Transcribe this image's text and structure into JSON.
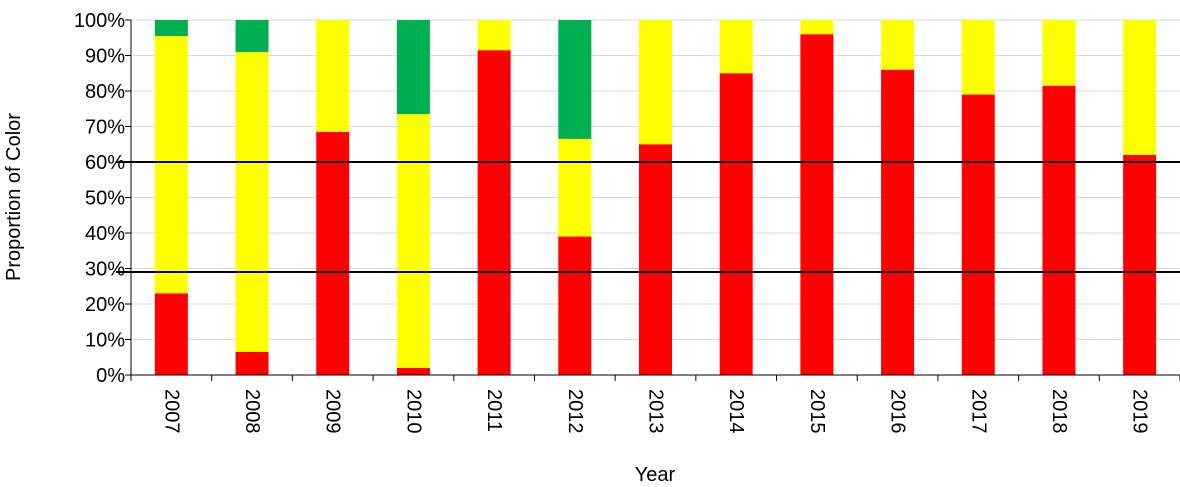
{
  "chart_data": {
    "type": "bar",
    "stacked": true,
    "title": "",
    "xlabel": "Year",
    "ylabel": "Proportion of Color",
    "ylim": [
      0,
      100
    ],
    "yticks": [
      "0%",
      "10%",
      "20%",
      "30%",
      "40%",
      "50%",
      "60%",
      "70%",
      "80%",
      "90%",
      "100%"
    ],
    "grid": true,
    "legend": "none",
    "categories": [
      "2007",
      "2008",
      "2009",
      "2010",
      "2011",
      "2012",
      "2013",
      "2014",
      "2015",
      "2016",
      "2017",
      "2018",
      "2019"
    ],
    "series": [
      {
        "color": "#ff0000",
        "values": [
          23,
          6.5,
          68.5,
          2,
          91.5,
          39,
          65,
          85,
          96,
          86,
          79,
          81.5,
          62
        ]
      },
      {
        "color": "#ffff00",
        "values": [
          72.5,
          84.5,
          31.5,
          71.5,
          8.5,
          27.5,
          35,
          15,
          4,
          14,
          21,
          18.5,
          38
        ]
      },
      {
        "color": "#00b050",
        "values": [
          4.5,
          9,
          0,
          26.5,
          0,
          33.5,
          0,
          0,
          0,
          0,
          0,
          0,
          0
        ]
      }
    ],
    "reference_lines": [
      {
        "value": 60,
        "color": "#000000"
      },
      {
        "value": 29,
        "color": "#000000"
      }
    ]
  }
}
